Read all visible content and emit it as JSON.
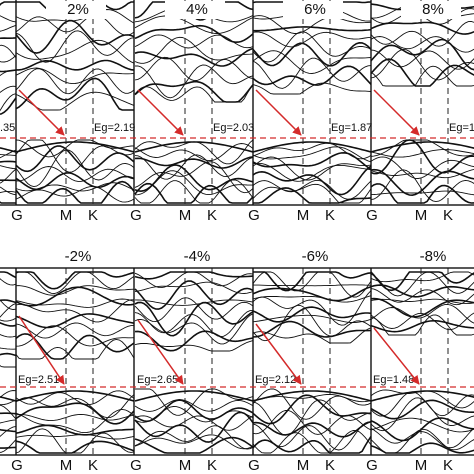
{
  "top": {
    "cropped_eg": ".35",
    "panels": [
      {
        "title": "2%",
        "eg": "Eg=2.19",
        "kpoints": [
          "G",
          "M",
          "K"
        ]
      },
      {
        "title": "4%",
        "eg": "Eg=2.03",
        "kpoints": [
          "G",
          "M",
          "K"
        ]
      },
      {
        "title": "6%",
        "eg": "Eg=1.87",
        "kpoints": [
          "G",
          "M",
          "K"
        ]
      },
      {
        "title": "8%",
        "eg": "Eg=1",
        "kpoints": [
          "G",
          "M",
          "K"
        ]
      }
    ]
  },
  "bottom": {
    "panels": [
      {
        "title": "-2%",
        "eg": "Eg=2.51",
        "kpoints": [
          "G",
          "M",
          "K"
        ]
      },
      {
        "title": "-4%",
        "eg": "Eg=2.65",
        "kpoints": [
          "G",
          "M",
          "K"
        ]
      },
      {
        "title": "-6%",
        "eg": "Eg=2.12",
        "kpoints": [
          "G",
          "M",
          "K"
        ]
      },
      {
        "title": "-8%",
        "eg": "Eg=1.48",
        "kpoints": [
          "G",
          "M",
          "K"
        ]
      }
    ]
  }
}
